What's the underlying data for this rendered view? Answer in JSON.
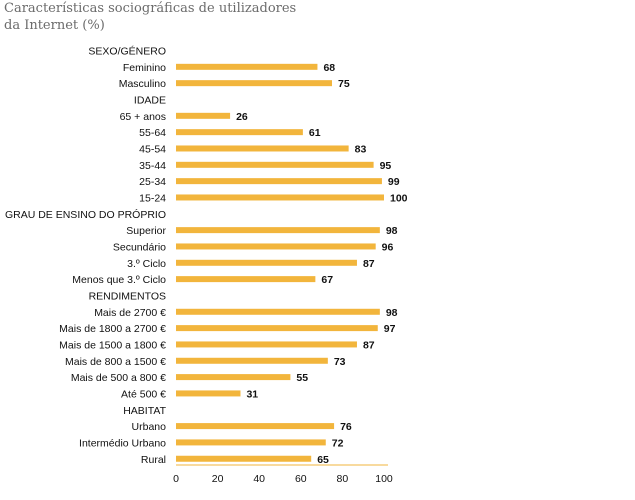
{
  "chart_data": {
    "type": "bar",
    "orientation": "horizontal",
    "title": "Características sociográficas de utilizadores da Internet (%)",
    "xlim": [
      0,
      100
    ],
    "xticks": [
      "0",
      "20",
      "40",
      "60",
      "80",
      "100"
    ],
    "bar_color": "#F2B53C",
    "groups": [
      {
        "header": "SEXO/GÉNERO",
        "items": [
          {
            "label": "Feminino",
            "value": 68
          },
          {
            "label": "Masculino",
            "value": 75
          }
        ]
      },
      {
        "header": "IDADE",
        "items": [
          {
            "label": "65 + anos",
            "value": 26
          },
          {
            "label": "55-64",
            "value": 61
          },
          {
            "label": "45-54",
            "value": 83
          },
          {
            "label": "35-44",
            "value": 95
          },
          {
            "label": "25-34",
            "value": 99
          },
          {
            "label": "15-24",
            "value": 100
          }
        ]
      },
      {
        "header": "GRAU DE ENSINO DO PRÓPRIO",
        "items": [
          {
            "label": "Superior",
            "value": 98
          },
          {
            "label": "Secundário",
            "value": 96
          },
          {
            "label": "3.º Ciclo",
            "value": 87
          },
          {
            "label": "Menos que 3.º Ciclo",
            "value": 67
          }
        ]
      },
      {
        "header": "RENDIMENTOS",
        "items": [
          {
            "label": "Mais de 2700 €",
            "value": 98
          },
          {
            "label": "Mais de 1800 a 2700 €",
            "value": 97
          },
          {
            "label": "Mais de 1500 a 1800 €",
            "value": 87
          },
          {
            "label": "Mais de 800 a 1500 €",
            "value": 73
          },
          {
            "label": "Mais de 500 a 800 €",
            "value": 55
          },
          {
            "label": "Até 500 €",
            "value": 31
          }
        ]
      },
      {
        "header": "HABITAT",
        "items": [
          {
            "label": "Urbano",
            "value": 76
          },
          {
            "label": "Intermédio Urbano",
            "value": 72
          },
          {
            "label": "Rural",
            "value": 65
          }
        ]
      }
    ]
  }
}
